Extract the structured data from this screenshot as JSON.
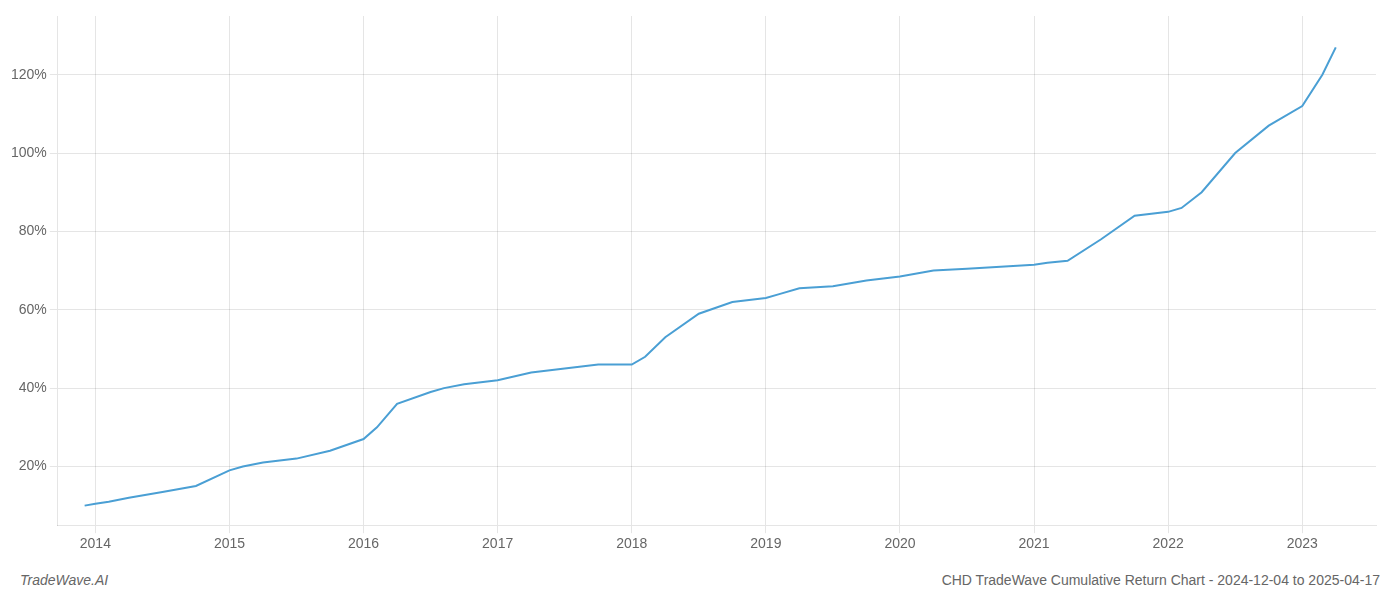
{
  "chart_data": {
    "type": "line",
    "title": "CHD TradeWave Cumulative Return Chart - 2024-12-04 to 2025-04-17",
    "annotations": [
      "TradeWave.AI"
    ],
    "x": [
      2013.92,
      2014.0,
      2014.1,
      2014.25,
      2014.5,
      2014.75,
      2015.0,
      2015.1,
      2015.25,
      2015.5,
      2015.75,
      2016.0,
      2016.1,
      2016.25,
      2016.5,
      2016.6,
      2016.75,
      2017.0,
      2017.25,
      2017.5,
      2017.75,
      2018.0,
      2018.1,
      2018.25,
      2018.5,
      2018.75,
      2019.0,
      2019.1,
      2019.25,
      2019.5,
      2019.75,
      2020.0,
      2020.25,
      2020.5,
      2020.75,
      2021.0,
      2021.1,
      2021.25,
      2021.5,
      2021.75,
      2022.0,
      2022.1,
      2022.25,
      2022.5,
      2022.75,
      2023.0,
      2023.15,
      2023.25
    ],
    "values": [
      10,
      10.5,
      11,
      12,
      13.5,
      15,
      19,
      20,
      21,
      22,
      24,
      27,
      30,
      36,
      39,
      40,
      41,
      42,
      44,
      45,
      46,
      46,
      48,
      53,
      59,
      62,
      63,
      64,
      65.5,
      66,
      67.5,
      68.5,
      70,
      70.5,
      71,
      71.5,
      72,
      72.5,
      78,
      84,
      85,
      86,
      90,
      100,
      107,
      112,
      120,
      127
    ],
    "color": "#4a9fd4",
    "xlim": [
      2013.72,
      2023.55
    ],
    "xticks": [
      2014,
      2015,
      2016,
      2017,
      2018,
      2019,
      2020,
      2021,
      2022,
      2023
    ],
    "ylim": [
      5,
      135
    ],
    "yticks": [
      {
        "value": 20,
        "label": "20%"
      },
      {
        "value": 40,
        "label": "40%"
      },
      {
        "value": 60,
        "label": "60%"
      },
      {
        "value": 80,
        "label": "80%"
      },
      {
        "value": 100,
        "label": "100%"
      },
      {
        "value": 120,
        "label": "120%"
      }
    ],
    "grid": true
  }
}
